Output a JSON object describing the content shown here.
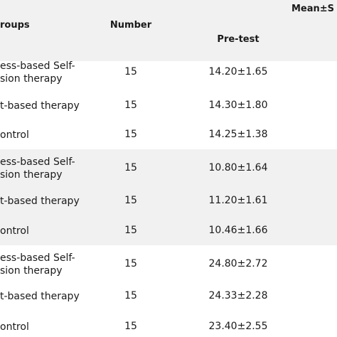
{
  "header": {
    "mean_sd": "Mean±S",
    "groups": "roups",
    "number": "Number",
    "pretest": "Pre-test"
  },
  "rows": [
    {
      "group": [
        "ess-based Self-",
        "sion therapy"
      ],
      "number": "15",
      "pretest": "14.20±1.65"
    },
    {
      "group": [
        "t-based therapy"
      ],
      "number": "15",
      "pretest": "14.30±1.80"
    },
    {
      "group": [
        "ontrol"
      ],
      "number": "15",
      "pretest": "14.25±1.38"
    },
    {
      "group": [
        "ess-based Self-",
        "sion therapy"
      ],
      "number": "15",
      "pretest": "10.80±1.64"
    },
    {
      "group": [
        "t-based therapy"
      ],
      "number": "15",
      "pretest": "11.20±1.61"
    },
    {
      "group": [
        "ontrol"
      ],
      "number": "15",
      "pretest": "10.46±1.66"
    },
    {
      "group": [
        "ess-based Self-",
        "sion therapy"
      ],
      "number": "15",
      "pretest": "24.80±2.72"
    },
    {
      "group": [
        "t-based therapy"
      ],
      "number": "15",
      "pretest": "24.33±2.28"
    },
    {
      "group": [
        "ontrol"
      ],
      "number": "15",
      "pretest": "23.40±2.55"
    }
  ]
}
